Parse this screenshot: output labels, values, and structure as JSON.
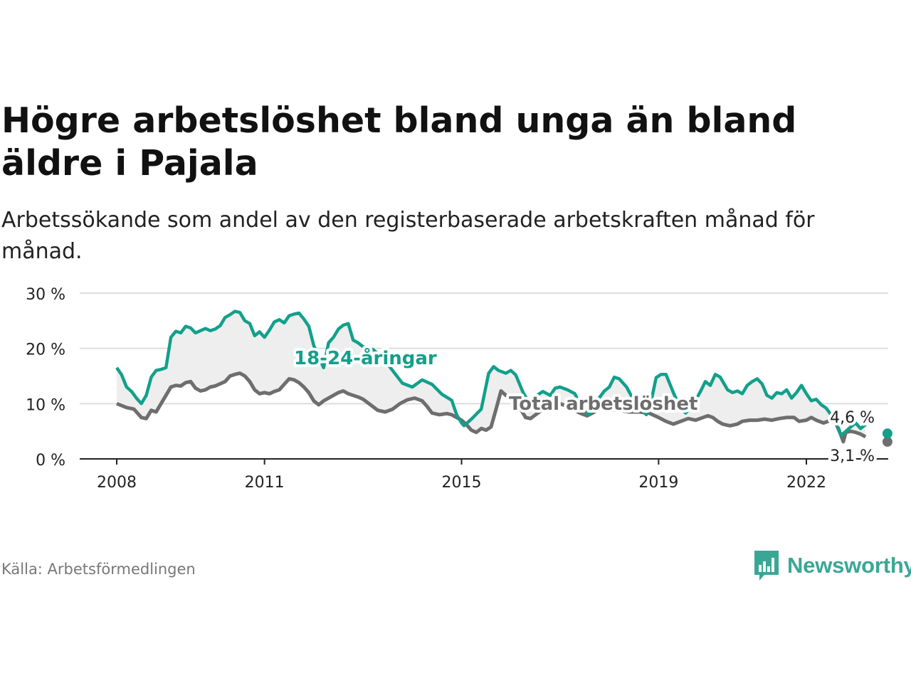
{
  "header": {
    "title": "Högre arbetslöshet bland unga än bland äldre i Pajala",
    "subtitle": "Arbetssökande som andel av den registerbaserade arbetskraften månad för månad."
  },
  "footer": {
    "source": "Källa: Arbetsförmedlingen",
    "brand": "Newsworthy"
  },
  "colors": {
    "youth": "#12a08b",
    "total": "#6e6e6e",
    "band": "#eeeeee",
    "grid": "#dddddd",
    "brand": "#3aa796"
  },
  "chart_data": {
    "type": "line",
    "title": "Högre arbetslöshet bland unga än bland äldre i Pajala",
    "xlabel": "",
    "ylabel": "",
    "ylim": [
      0,
      30
    ],
    "xlim": [
      2006.8,
      2023.3
    ],
    "yticks": [
      0,
      10,
      20,
      30
    ],
    "ytick_labels": [
      "0 %",
      "10 %",
      "20 %",
      "30 %"
    ],
    "xticks": [
      2008,
      2011,
      2015,
      2019,
      2022
    ],
    "xtick_labels": [
      "2008",
      "2011",
      "2015",
      "2019",
      "2022"
    ],
    "series": [
      {
        "name": "18-24-åringar",
        "label": "18-24-åringar",
        "end_label": "4,6 %",
        "end_value": 4.6,
        "points": [
          [
            2008.0,
            16.5
          ],
          [
            2008.1,
            15.2
          ],
          [
            2008.2,
            13.0
          ],
          [
            2008.3,
            12.2
          ],
          [
            2008.4,
            11.0
          ],
          [
            2008.5,
            10.0
          ],
          [
            2008.6,
            11.5
          ],
          [
            2008.7,
            14.8
          ],
          [
            2008.8,
            16.0
          ],
          [
            2008.9,
            16.2
          ],
          [
            2009.0,
            16.5
          ],
          [
            2009.1,
            22.0
          ],
          [
            2009.2,
            23.1
          ],
          [
            2009.3,
            22.8
          ],
          [
            2009.4,
            24.0
          ],
          [
            2009.5,
            23.7
          ],
          [
            2009.6,
            22.8
          ],
          [
            2009.7,
            23.2
          ],
          [
            2009.8,
            23.6
          ],
          [
            2009.9,
            23.2
          ],
          [
            2010.0,
            23.5
          ],
          [
            2010.1,
            24.1
          ],
          [
            2010.2,
            25.6
          ],
          [
            2010.3,
            26.1
          ],
          [
            2010.4,
            26.7
          ],
          [
            2010.5,
            26.5
          ],
          [
            2010.6,
            25.0
          ],
          [
            2010.7,
            24.5
          ],
          [
            2010.8,
            22.3
          ],
          [
            2010.9,
            23.0
          ],
          [
            2011.0,
            22.0
          ],
          [
            2011.1,
            23.3
          ],
          [
            2011.2,
            24.8
          ],
          [
            2011.3,
            25.2
          ],
          [
            2011.4,
            24.6
          ],
          [
            2011.5,
            25.9
          ],
          [
            2011.6,
            26.2
          ],
          [
            2011.7,
            26.4
          ],
          [
            2011.8,
            25.3
          ],
          [
            2011.9,
            24.0
          ],
          [
            2012.0,
            20.5
          ],
          [
            2012.1,
            18.5
          ],
          [
            2012.2,
            16.5
          ],
          [
            2012.3,
            21.0
          ],
          [
            2012.4,
            22.0
          ],
          [
            2012.5,
            23.5
          ],
          [
            2012.6,
            24.2
          ],
          [
            2012.7,
            24.5
          ],
          [
            2012.8,
            21.5
          ],
          [
            2012.9,
            21.0
          ],
          [
            2013.0,
            20.3
          ],
          [
            2013.2,
            19.8
          ],
          [
            2013.4,
            18.3
          ],
          [
            2013.6,
            16.0
          ],
          [
            2013.8,
            13.7
          ],
          [
            2014.0,
            13.0
          ],
          [
            2014.2,
            14.3
          ],
          [
            2014.4,
            13.5
          ],
          [
            2014.6,
            11.7
          ],
          [
            2014.8,
            10.6
          ],
          [
            2014.9,
            8.0
          ],
          [
            2015.0,
            6.5
          ],
          [
            2015.05,
            6.0
          ],
          [
            2015.2,
            7.2
          ],
          [
            2015.4,
            9.0
          ],
          [
            2015.55,
            15.5
          ],
          [
            2015.65,
            16.7
          ],
          [
            2015.75,
            16.0
          ],
          [
            2015.9,
            15.5
          ],
          [
            2016.0,
            16.0
          ],
          [
            2016.1,
            15.2
          ],
          [
            2016.25,
            12.0
          ],
          [
            2016.35,
            10.5
          ],
          [
            2016.5,
            11.3
          ],
          [
            2016.65,
            12.2
          ],
          [
            2016.8,
            11.5
          ],
          [
            2016.9,
            12.8
          ],
          [
            2017.0,
            13.0
          ],
          [
            2017.15,
            12.5
          ],
          [
            2017.3,
            11.8
          ],
          [
            2017.45,
            9.0
          ],
          [
            2017.6,
            8.0
          ],
          [
            2017.75,
            10.5
          ],
          [
            2017.9,
            12.3
          ],
          [
            2018.0,
            13.0
          ],
          [
            2018.1,
            14.8
          ],
          [
            2018.2,
            14.5
          ],
          [
            2018.35,
            13.0
          ],
          [
            2018.5,
            10.5
          ],
          [
            2018.65,
            9.0
          ],
          [
            2018.75,
            8.0
          ],
          [
            2018.85,
            10.5
          ],
          [
            2018.95,
            14.7
          ],
          [
            2019.05,
            15.3
          ],
          [
            2019.15,
            15.3
          ],
          [
            2019.3,
            12.0
          ],
          [
            2019.45,
            9.0
          ],
          [
            2019.55,
            8.3
          ],
          [
            2019.7,
            9.8
          ],
          [
            2019.85,
            12.2
          ],
          [
            2019.95,
            14.0
          ],
          [
            2020.05,
            13.3
          ],
          [
            2020.15,
            15.3
          ],
          [
            2020.25,
            14.8
          ],
          [
            2020.4,
            12.5
          ],
          [
            2020.5,
            12.0
          ],
          [
            2020.6,
            12.3
          ],
          [
            2020.7,
            11.8
          ],
          [
            2020.8,
            13.3
          ],
          [
            2020.9,
            14.0
          ],
          [
            2021.0,
            14.5
          ],
          [
            2021.1,
            13.6
          ],
          [
            2021.2,
            11.5
          ],
          [
            2021.3,
            11.0
          ],
          [
            2021.4,
            12.0
          ],
          [
            2021.5,
            11.8
          ],
          [
            2021.6,
            12.5
          ],
          [
            2021.7,
            11.0
          ],
          [
            2021.8,
            12.0
          ],
          [
            2021.9,
            13.3
          ],
          [
            2022.0,
            11.8
          ],
          [
            2022.1,
            10.5
          ],
          [
            2022.2,
            10.8
          ],
          [
            2022.3,
            9.8
          ],
          [
            2022.4,
            9.2
          ],
          [
            2022.5,
            8.0
          ],
          [
            2022.6,
            7.0
          ],
          [
            2022.7,
            4.3
          ],
          [
            2022.8,
            5.0
          ],
          [
            2022.9,
            5.8
          ],
          [
            2023.0,
            6.5
          ],
          [
            2023.1,
            5.5
          ],
          [
            2023.2,
            6.2
          ],
          [
            2022.75,
            4.6
          ]
        ]
      },
      {
        "name": "Total arbetslöshet",
        "label": "Total arbetslöshet",
        "end_label": "3,1 %",
        "end_value": 3.1,
        "points": [
          [
            2008.0,
            10.0
          ],
          [
            2008.2,
            9.3
          ],
          [
            2008.35,
            9.0
          ],
          [
            2008.5,
            7.5
          ],
          [
            2008.6,
            7.3
          ],
          [
            2008.7,
            8.8
          ],
          [
            2008.8,
            8.5
          ],
          [
            2008.9,
            10.0
          ],
          [
            2009.0,
            11.5
          ],
          [
            2009.1,
            13.0
          ],
          [
            2009.2,
            13.3
          ],
          [
            2009.3,
            13.2
          ],
          [
            2009.4,
            13.8
          ],
          [
            2009.5,
            14.0
          ],
          [
            2009.6,
            12.8
          ],
          [
            2009.7,
            12.3
          ],
          [
            2009.8,
            12.5
          ],
          [
            2009.9,
            13.0
          ],
          [
            2010.0,
            13.2
          ],
          [
            2010.2,
            14.0
          ],
          [
            2010.3,
            15.0
          ],
          [
            2010.4,
            15.3
          ],
          [
            2010.5,
            15.5
          ],
          [
            2010.6,
            15.0
          ],
          [
            2010.7,
            14.0
          ],
          [
            2010.8,
            12.5
          ],
          [
            2010.9,
            11.8
          ],
          [
            2011.0,
            12.0
          ],
          [
            2011.1,
            11.8
          ],
          [
            2011.2,
            12.2
          ],
          [
            2011.3,
            12.5
          ],
          [
            2011.4,
            13.5
          ],
          [
            2011.5,
            14.5
          ],
          [
            2011.6,
            14.3
          ],
          [
            2011.7,
            13.8
          ],
          [
            2011.8,
            13.0
          ],
          [
            2011.9,
            12.0
          ],
          [
            2012.0,
            10.5
          ],
          [
            2012.1,
            9.8
          ],
          [
            2012.2,
            10.5
          ],
          [
            2012.3,
            11.0
          ],
          [
            2012.4,
            11.5
          ],
          [
            2012.5,
            12.0
          ],
          [
            2012.6,
            12.3
          ],
          [
            2012.7,
            11.8
          ],
          [
            2012.8,
            11.5
          ],
          [
            2012.9,
            11.2
          ],
          [
            2013.0,
            10.8
          ],
          [
            2013.15,
            9.8
          ],
          [
            2013.3,
            8.8
          ],
          [
            2013.45,
            8.5
          ],
          [
            2013.6,
            9.0
          ],
          [
            2013.75,
            10.0
          ],
          [
            2013.9,
            10.7
          ],
          [
            2014.05,
            11.0
          ],
          [
            2014.2,
            10.5
          ],
          [
            2014.3,
            9.5
          ],
          [
            2014.4,
            8.3
          ],
          [
            2014.55,
            8.0
          ],
          [
            2014.7,
            8.2
          ],
          [
            2014.8,
            8.0
          ],
          [
            2014.9,
            7.5
          ],
          [
            2015.0,
            7.0
          ],
          [
            2015.1,
            6.2
          ],
          [
            2015.2,
            5.2
          ],
          [
            2015.3,
            4.8
          ],
          [
            2015.4,
            5.5
          ],
          [
            2015.5,
            5.2
          ],
          [
            2015.6,
            5.8
          ],
          [
            2015.7,
            9.0
          ],
          [
            2015.8,
            12.3
          ],
          [
            2015.9,
            11.5
          ],
          [
            2016.0,
            11.0
          ],
          [
            2016.1,
            10.8
          ],
          [
            2016.2,
            9.0
          ],
          [
            2016.3,
            7.5
          ],
          [
            2016.4,
            7.3
          ],
          [
            2016.55,
            8.3
          ],
          [
            2016.7,
            9.3
          ],
          [
            2016.85,
            9.8
          ],
          [
            2017.0,
            10.0
          ],
          [
            2017.2,
            9.3
          ],
          [
            2017.4,
            8.3
          ],
          [
            2017.55,
            7.8
          ],
          [
            2017.7,
            8.5
          ],
          [
            2017.85,
            9.3
          ],
          [
            2018.0,
            9.0
          ],
          [
            2018.2,
            8.8
          ],
          [
            2018.4,
            8.5
          ],
          [
            2018.6,
            8.5
          ],
          [
            2018.8,
            8.3
          ],
          [
            2019.0,
            7.5
          ],
          [
            2019.15,
            6.8
          ],
          [
            2019.3,
            6.3
          ],
          [
            2019.45,
            6.8
          ],
          [
            2019.6,
            7.3
          ],
          [
            2019.75,
            7.0
          ],
          [
            2019.9,
            7.5
          ],
          [
            2020.0,
            7.8
          ],
          [
            2020.1,
            7.5
          ],
          [
            2020.2,
            6.8
          ],
          [
            2020.3,
            6.3
          ],
          [
            2020.45,
            6.0
          ],
          [
            2020.6,
            6.3
          ],
          [
            2020.7,
            6.8
          ],
          [
            2020.85,
            7.0
          ],
          [
            2021.0,
            7.0
          ],
          [
            2021.15,
            7.2
          ],
          [
            2021.3,
            7.0
          ],
          [
            2021.45,
            7.3
          ],
          [
            2021.6,
            7.5
          ],
          [
            2021.75,
            7.5
          ],
          [
            2021.85,
            6.8
          ],
          [
            2022.0,
            7.0
          ],
          [
            2022.1,
            7.5
          ],
          [
            2022.2,
            7.0
          ],
          [
            2022.35,
            6.5
          ],
          [
            2022.5,
            7.0
          ],
          [
            2022.6,
            6.5
          ],
          [
            2022.7,
            4.3
          ],
          [
            2022.8,
            4.8
          ],
          [
            2022.9,
            5.0
          ],
          [
            2023.0,
            4.8
          ],
          [
            2023.1,
            4.5
          ],
          [
            2023.2,
            4.0
          ],
          [
            2022.75,
            3.1
          ]
        ]
      }
    ]
  }
}
